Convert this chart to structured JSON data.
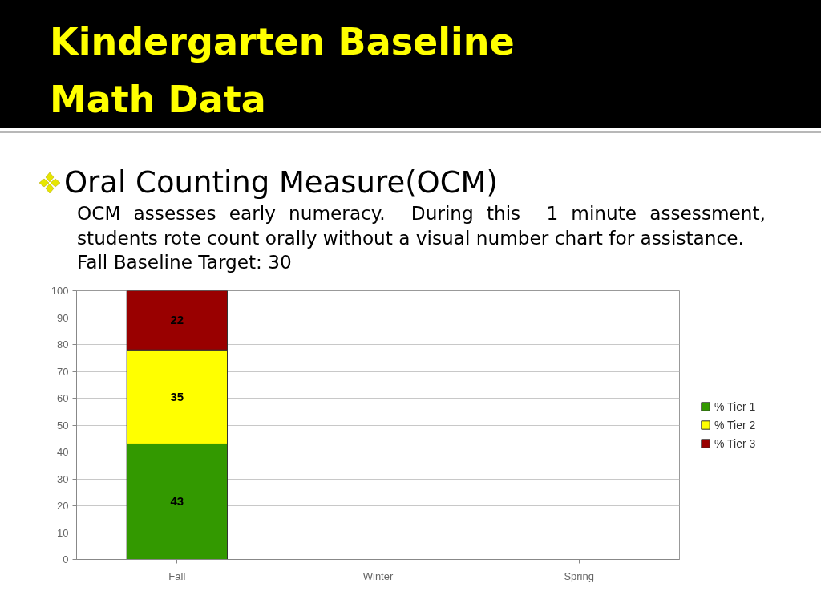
{
  "chart_data": {
    "type": "bar",
    "title": "Kindergarten Baseline Math Data",
    "subtitle": "Oral Counting Measure(OCM)",
    "annotations": [
      "OCM assesses early numeracy.  During this  1 minute assessment, students rote count orally without a visual number chart for assistance.",
      "Fall Baseline Target: 30"
    ],
    "categories": [
      "Fall",
      "Winter",
      "Spring"
    ],
    "series": [
      {
        "name": "% Tier 1",
        "color": "#339900",
        "values": [
          43,
          null,
          null
        ]
      },
      {
        "name": "% Tier 2",
        "color": "#ffff00",
        "values": [
          35,
          null,
          null
        ]
      },
      {
        "name": "% Tier 3",
        "color": "#990000",
        "values": [
          22,
          null,
          null
        ]
      }
    ],
    "stacked": true,
    "ylim": [
      0,
      100
    ],
    "yticks": [
      0,
      10,
      20,
      30,
      40,
      50,
      60,
      70,
      80,
      90,
      100
    ],
    "grid": "y",
    "legend": "right",
    "data_labels": true
  }
}
